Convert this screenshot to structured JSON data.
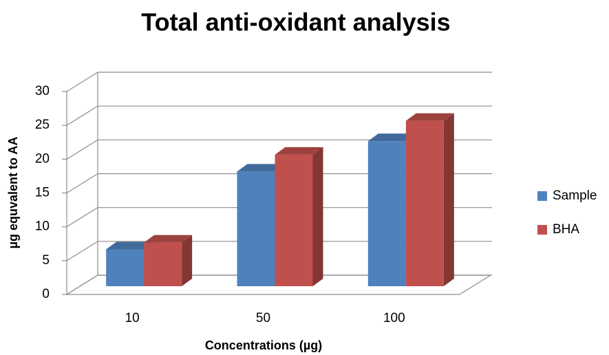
{
  "chart_data": {
    "type": "bar3d",
    "title": "Total anti-oxidant analysis",
    "x_label": "Concentrations (µg)",
    "y_label": "µg equvalent to AA",
    "categories": [
      "10",
      "50",
      "100"
    ],
    "series": [
      {
        "name": "Sample",
        "color": "#4f81bd",
        "values": [
          6,
          17.5,
          22
        ]
      },
      {
        "name": "BHA",
        "color": "#c0504d",
        "values": [
          7,
          20,
          25
        ]
      }
    ],
    "ylim": [
      0,
      30
    ],
    "yticks": [
      0,
      5,
      10,
      15,
      20,
      25,
      30
    ],
    "grid": true,
    "legend": "right"
  }
}
